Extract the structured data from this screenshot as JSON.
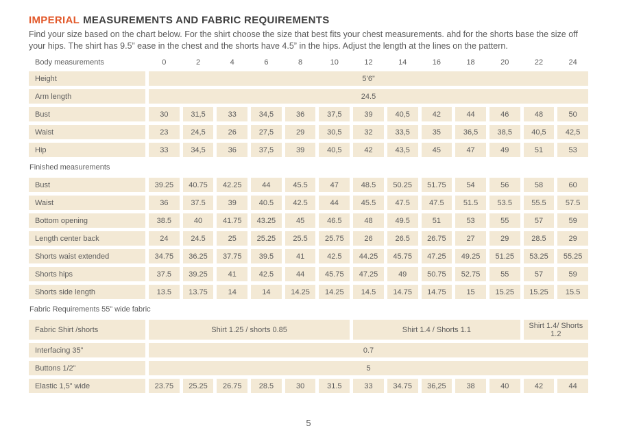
{
  "page": {
    "title_highlight": "IMPERIAL",
    "title_rest": "MEASUREMENTS AND FABRIC REQUIREMENTS",
    "intro": "Find your size based on the chart below. For the shirt choose the size that best fits your chest measurements.  ahd for the shorts base the size off your hips. The shirt  has 9.5” ease in the chest and the shorts have 4.5” in the hips. Adjust the length at the lines on the pattern.",
    "page_number": "5"
  },
  "colors": {
    "accent": "#e2592b",
    "cell_background": "#f3e9d5",
    "heading_text": "#3f3f3f",
    "body_text": "#595959",
    "cell_text": "#5c5c5c"
  },
  "table": {
    "sizes": [
      "0",
      "2",
      "4",
      "6",
      "8",
      "10",
      "12",
      "14",
      "16",
      "18",
      "20",
      "22",
      "24"
    ],
    "sections": [
      {
        "name": "body-measurements",
        "header_label": "Body measurements",
        "rows": [
          {
            "label": "Height",
            "type": "span",
            "span_text": "5’6”"
          },
          {
            "label": "Arm length",
            "type": "span",
            "span_text": "24.5"
          },
          {
            "label": "Bust",
            "type": "values",
            "values": [
              "30",
              "31,5",
              "33",
              "34,5",
              "36",
              "37,5",
              "39",
              "40,5",
              "42",
              "44",
              "46",
              "48",
              "50"
            ]
          },
          {
            "label": "Waist",
            "type": "values",
            "values": [
              "23",
              "24,5",
              "26",
              "27,5",
              "29",
              "30,5",
              "32",
              "33,5",
              "35",
              "36,5",
              "38,5",
              "40,5",
              "42,5"
            ]
          },
          {
            "label": "Hip",
            "type": "values",
            "values": [
              "33",
              "34,5",
              "36",
              "37,5",
              "39",
              "40,5",
              "42",
              "43,5",
              "45",
              "47",
              "49",
              "51",
              "53"
            ]
          }
        ]
      },
      {
        "name": "finished-measurements",
        "header_label": "Finished measurements",
        "rows": [
          {
            "label": "Bust",
            "type": "values",
            "values": [
              "39.25",
              "40.75",
              "42.25",
              "44",
              "45.5",
              "47",
              "48.5",
              "50.25",
              "51.75",
              "54",
              "56",
              "58",
              "60"
            ]
          },
          {
            "label": "Waist",
            "type": "values",
            "values": [
              "36",
              "37.5",
              "39",
              "40.5",
              "42.5",
              "44",
              "45.5",
              "47.5",
              "47.5",
              "51.5",
              "53.5",
              "55.5",
              "57.5"
            ]
          },
          {
            "label": "Bottom opening",
            "type": "values",
            "values": [
              "38.5",
              "40",
              "41.75",
              "43.25",
              "45",
              "46.5",
              "48",
              "49.5",
              "51",
              "53",
              "55",
              "57",
              "59"
            ]
          },
          {
            "label": "Length center back",
            "type": "values",
            "values": [
              "24",
              "24.5",
              "25",
              "25.25",
              "25.5",
              "25.75",
              "26",
              "26.5",
              "26.75",
              "27",
              "29",
              "28.5",
              "29"
            ]
          },
          {
            "label": "Shorts waist extended",
            "type": "values",
            "values": [
              "34.75",
              "36.25",
              "37.75",
              "39.5",
              "41",
              "42.5",
              "44.25",
              "45.75",
              "47.25",
              "49.25",
              "51.25",
              "53.25",
              "55.25"
            ]
          },
          {
            "label": "Shorts hips",
            "type": "values",
            "values": [
              "37.5",
              "39.25",
              "41",
              "42.5",
              "44",
              "45.75",
              "47.25",
              "49",
              "50.75",
              "52.75",
              "55",
              "57",
              "59"
            ]
          },
          {
            "label": "Shorts side length",
            "type": "values",
            "values": [
              "13.5",
              "13.75",
              "14",
              "14",
              "14.25",
              "14.25",
              "14.5",
              "14.75",
              "14.75",
              "15",
              "15.25",
              "15.25",
              "15.5"
            ]
          }
        ]
      },
      {
        "name": "fabric-requirements",
        "header_label": "Fabric Requirements 55” wide fabric",
        "rows": [
          {
            "label": "Fabric Shirt /shorts",
            "type": "spans",
            "tall": true,
            "spans": [
              {
                "text": "Shirt 1.25 / shorts 0.85",
                "cols": 6
              },
              {
                "text": "Shirt 1.4 /  Shorts 1.1",
                "cols": 5
              },
              {
                "text": "Shirt 1.4/ Shorts 1.2",
                "cols": 2
              }
            ]
          },
          {
            "label": "Interfacing 35”",
            "type": "span",
            "span_text": "0.7"
          },
          {
            "label": "Buttons 1/2”",
            "type": "span",
            "span_text": "5"
          },
          {
            "label": "Elastic 1,5” wide",
            "type": "values",
            "values": [
              "23.75",
              "25.25",
              "26.75",
              "28.5",
              "30",
              "31.5",
              "33",
              "34.75",
              "36,25",
              "38",
              "40",
              "42",
              "44"
            ]
          }
        ]
      }
    ]
  }
}
